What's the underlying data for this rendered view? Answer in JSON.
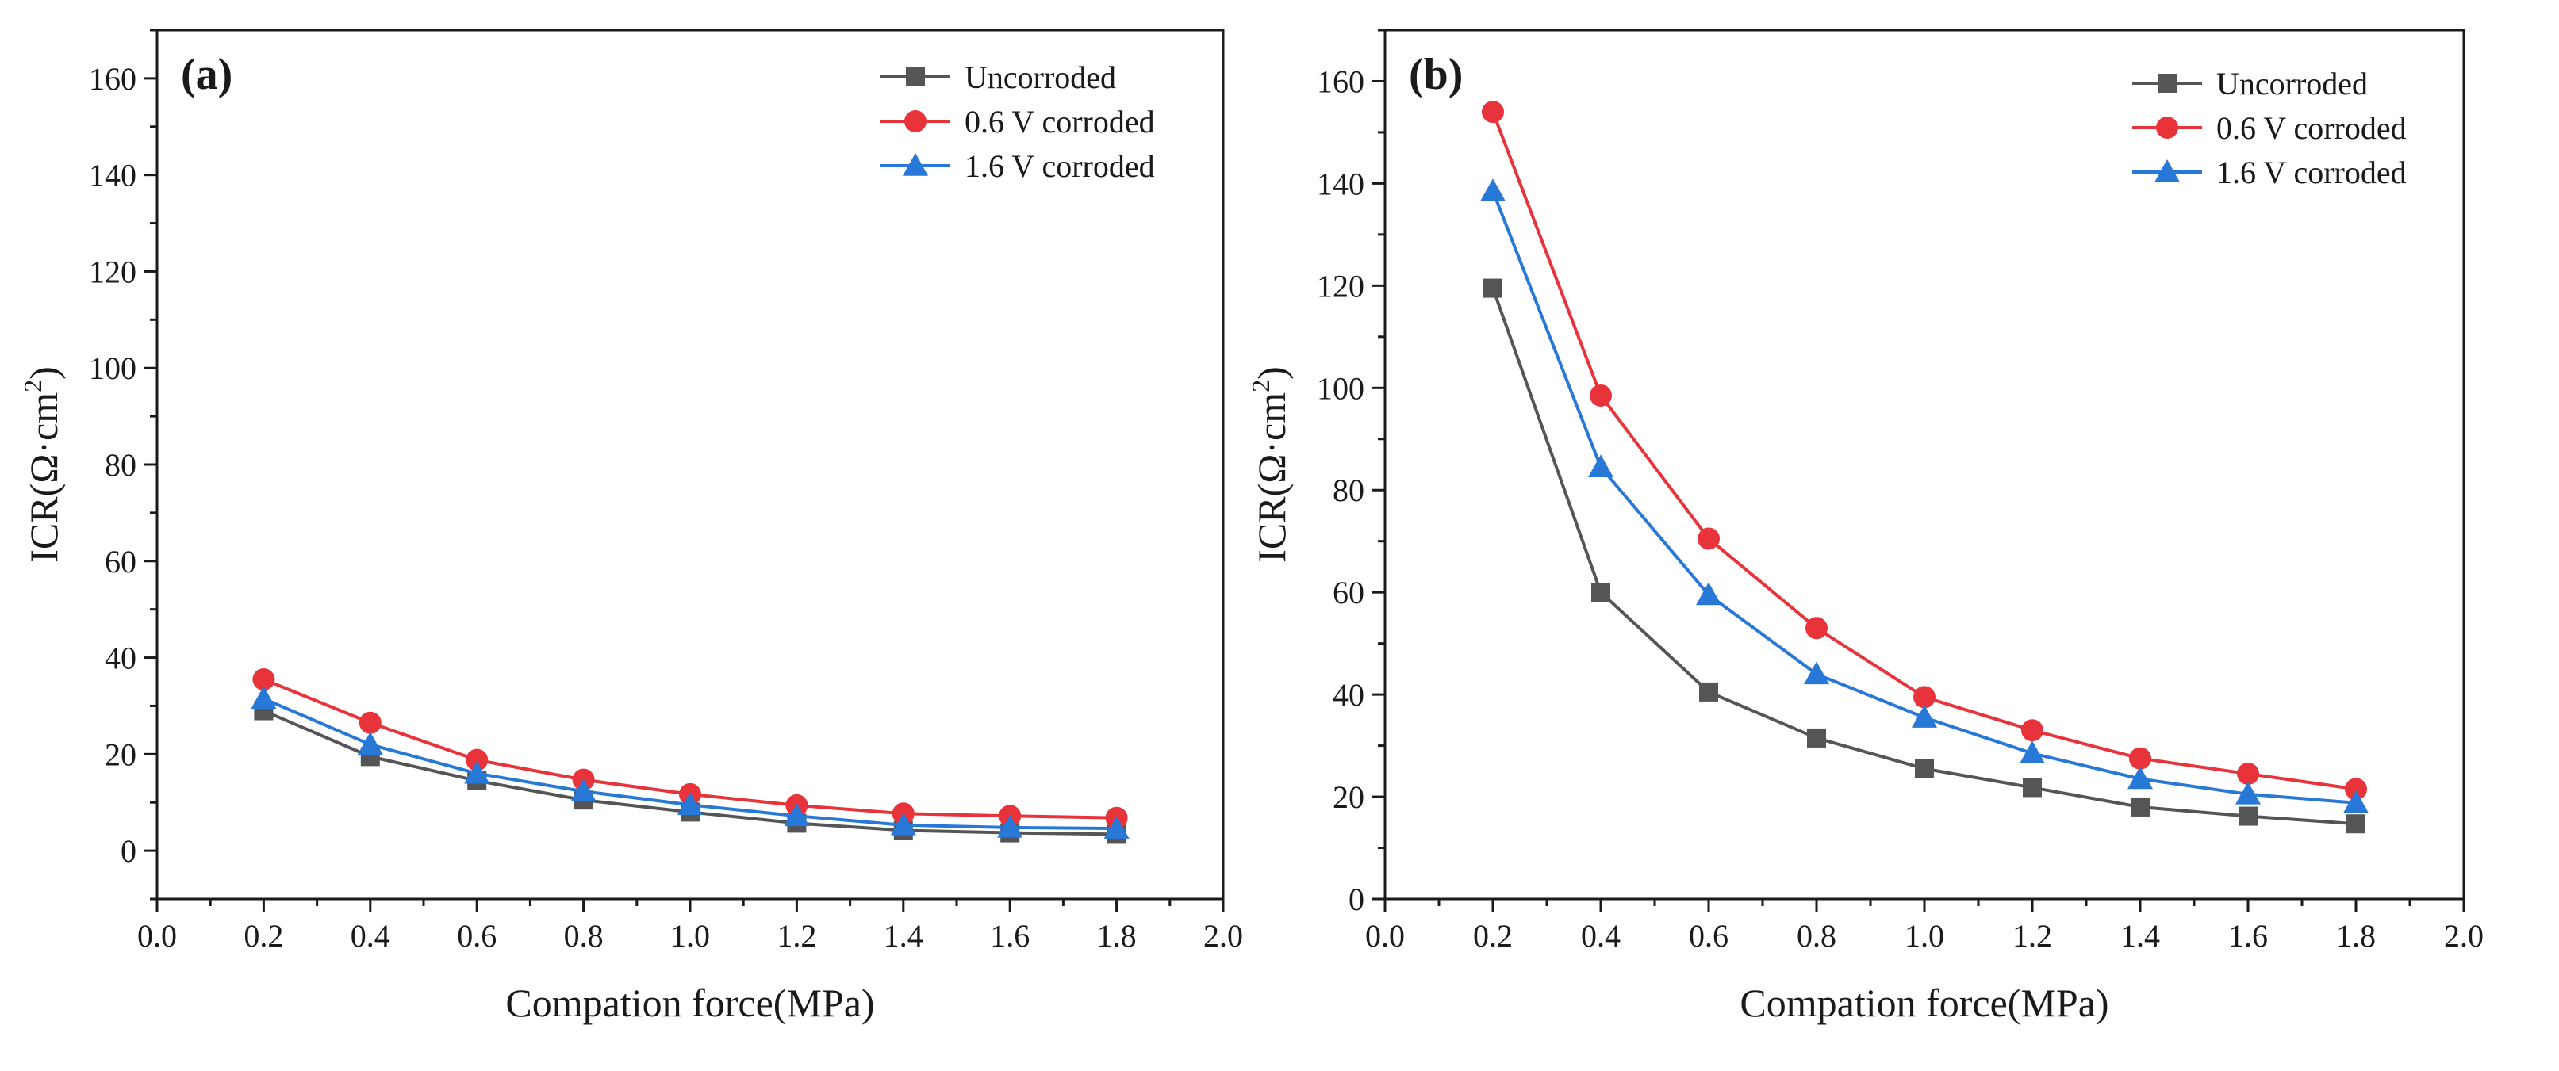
{
  "chart_data": [
    {
      "panel_label": "(a)",
      "type": "line",
      "xlabel": "Compation force(MPa)",
      "ylabel_main": "ICR(Ω·cm",
      "ylabel_sup": "2",
      "ylabel_close": ")",
      "xlim": [
        0.0,
        2.0
      ],
      "ylim": [
        -10,
        170
      ],
      "xticks": [
        0.0,
        0.2,
        0.4,
        0.6,
        0.8,
        1.0,
        1.2,
        1.4,
        1.6,
        1.8,
        2.0
      ],
      "xtick_labels": [
        "0.0",
        "0.2",
        "0.4",
        "0.6",
        "0.8",
        "1.0",
        "1.2",
        "1.4",
        "1.6",
        "1.8",
        "2.0"
      ],
      "yticks": [
        0,
        20,
        40,
        60,
        80,
        100,
        120,
        140,
        160
      ],
      "ytick_labels": [
        "0",
        "20",
        "40",
        "60",
        "80",
        "100",
        "120",
        "140",
        "160"
      ],
      "x": [
        0.2,
        0.4,
        0.6,
        0.8,
        1.0,
        1.2,
        1.4,
        1.6,
        1.8
      ],
      "legend_position": "top-right",
      "series": [
        {
          "name": "Uncorroded",
          "color": "#555555",
          "marker": "square",
          "values": [
            29.0,
            19.5,
            14.5,
            10.5,
            8.0,
            5.7,
            4.2,
            3.7,
            3.4
          ]
        },
        {
          "name": "0.6 V corroded",
          "color": "#e8333a",
          "marker": "circle",
          "values": [
            35.5,
            26.5,
            18.8,
            14.7,
            11.7,
            9.4,
            7.7,
            7.2,
            6.8
          ]
        },
        {
          "name": "1.6 V corroded",
          "color": "#2878d8",
          "marker": "triangle",
          "values": [
            31.5,
            22.0,
            16.0,
            12.3,
            9.5,
            7.2,
            5.3,
            4.8,
            4.6
          ]
        }
      ]
    },
    {
      "panel_label": "(b)",
      "type": "line",
      "xlabel": "Compation force(MPa)",
      "ylabel_main": "ICR(Ω·cm",
      "ylabel_sup": "2",
      "ylabel_close": ")",
      "xlim": [
        0.0,
        2.0
      ],
      "ylim": [
        0,
        170
      ],
      "xticks": [
        0.0,
        0.2,
        0.4,
        0.6,
        0.8,
        1.0,
        1.2,
        1.4,
        1.6,
        1.8,
        2.0
      ],
      "xtick_labels": [
        "0.0",
        "0.2",
        "0.4",
        "0.6",
        "0.8",
        "1.0",
        "1.2",
        "1.4",
        "1.6",
        "1.8",
        "2.0"
      ],
      "yticks": [
        0,
        20,
        40,
        60,
        80,
        100,
        120,
        140,
        160
      ],
      "ytick_labels": [
        "0",
        "20",
        "40",
        "60",
        "80",
        "100",
        "120",
        "140",
        "160"
      ],
      "x": [
        0.2,
        0.4,
        0.6,
        0.8,
        1.0,
        1.2,
        1.4,
        1.6,
        1.8
      ],
      "legend_position": "top-right",
      "series": [
        {
          "name": "Uncorroded",
          "color": "#555555",
          "marker": "square",
          "values": [
            119.5,
            60.0,
            40.5,
            31.5,
            25.5,
            21.8,
            18.0,
            16.2,
            14.7
          ]
        },
        {
          "name": "0.6 V corroded",
          "color": "#e8333a",
          "marker": "circle",
          "values": [
            154.0,
            98.5,
            70.5,
            53.0,
            39.5,
            33.0,
            27.5,
            24.5,
            21.5
          ]
        },
        {
          "name": "1.6 V corroded",
          "color": "#2878d8",
          "marker": "triangle",
          "values": [
            138.5,
            84.5,
            59.5,
            44.0,
            35.5,
            28.5,
            23.5,
            20.5,
            18.8
          ]
        }
      ]
    }
  ]
}
